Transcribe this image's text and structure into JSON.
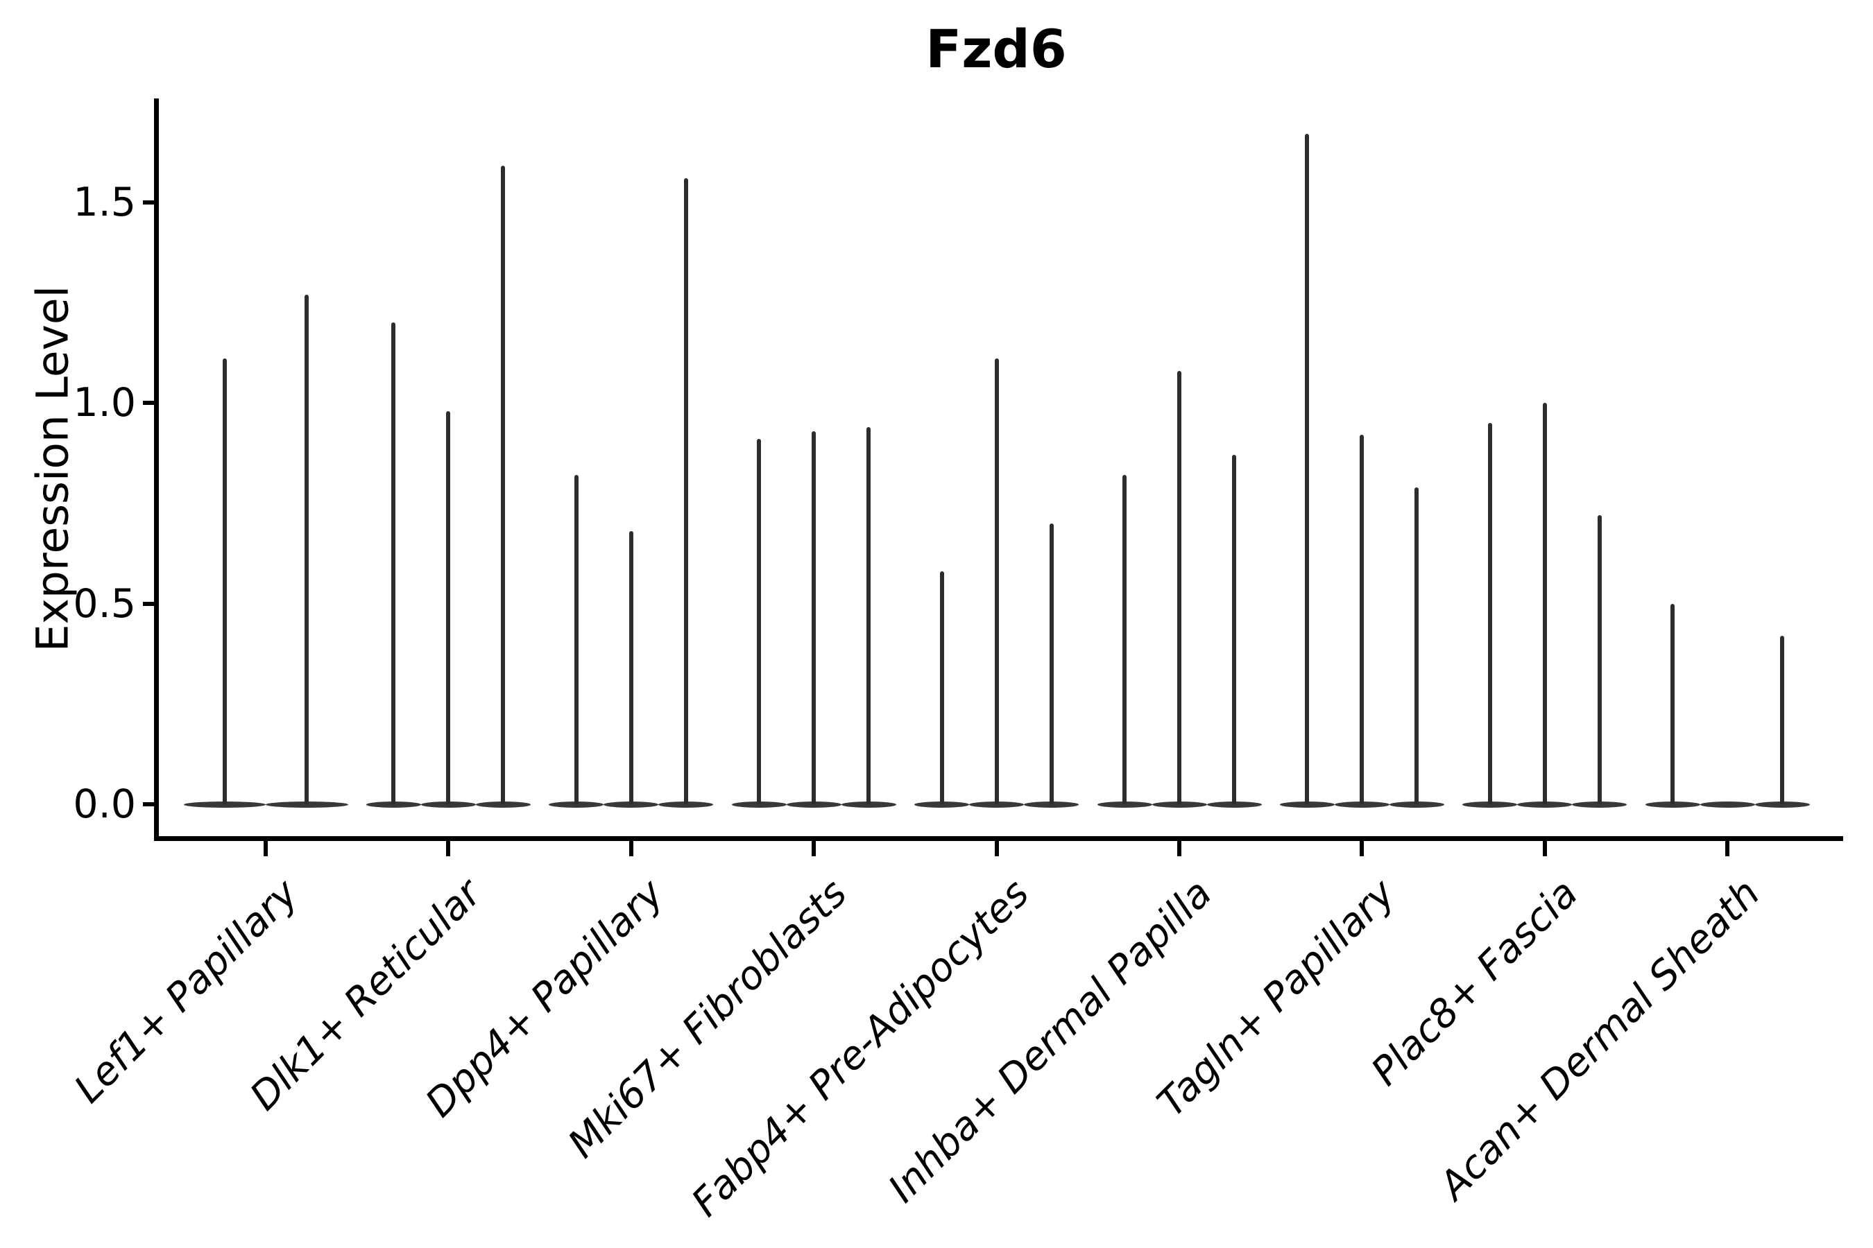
{
  "title": "Fzd6",
  "ylabel": "Expression Level",
  "chart_data": {
    "type": "violin",
    "title": "Fzd6",
    "xlabel": "",
    "ylabel": "Expression Level",
    "ylim": [
      0,
      1.76
    ],
    "yticks": [
      0.0,
      0.5,
      1.0,
      1.5
    ],
    "ytick_labels": [
      "0.0",
      "0.5",
      "1.0",
      "1.5"
    ],
    "grid": false,
    "legend": "none",
    "x_label_rotation": 45,
    "x_label_style": "italic",
    "description": "Violin plot of Fzd6 expression; each cell-type group contains multiple narrow spike-shaped violins (max expression value per violin, dense mass at 0)",
    "categories": [
      "Lef1+ Papillary",
      "Dlk1+ Reticular",
      "Dpp4+ Papillary",
      "Mki67+ Fibroblasts",
      "Fabp4+ Pre-Adipocytes",
      "Inhba+ Dermal Papilla",
      "Tagln+ Papillary",
      "Plac8+ Fascia",
      "Acan+ Dermal Sheath"
    ],
    "series": [
      {
        "category": "Lef1+ Papillary",
        "violin_peaks": [
          1.11,
          1.27
        ]
      },
      {
        "category": "Dlk1+ Reticular",
        "violin_peaks": [
          1.2,
          0.98,
          1.59
        ]
      },
      {
        "category": "Dpp4+ Papillary",
        "violin_peaks": [
          0.82,
          0.68,
          1.56
        ]
      },
      {
        "category": "Mki67+ Fibroblasts",
        "violin_peaks": [
          0.91,
          0.93,
          0.94
        ]
      },
      {
        "category": "Fabp4+ Pre-Adipocytes",
        "violin_peaks": [
          0.58,
          1.11,
          0.7
        ]
      },
      {
        "category": "Inhba+ Dermal Papilla",
        "violin_peaks": [
          0.82,
          1.08,
          0.87
        ]
      },
      {
        "category": "Tagln+ Papillary",
        "violin_peaks": [
          1.67,
          0.92,
          0.79
        ]
      },
      {
        "category": "Plac8+ Fascia",
        "violin_peaks": [
          0.95,
          1.0,
          0.72
        ]
      },
      {
        "category": "Acan+ Dermal Sheath",
        "violin_peaks": [
          0.5,
          0.0,
          0.42
        ]
      }
    ],
    "colors": {
      "violin_fill": "#383838",
      "spike": "#2d2d2d",
      "axis": "#000000",
      "background": "#ffffff"
    }
  }
}
